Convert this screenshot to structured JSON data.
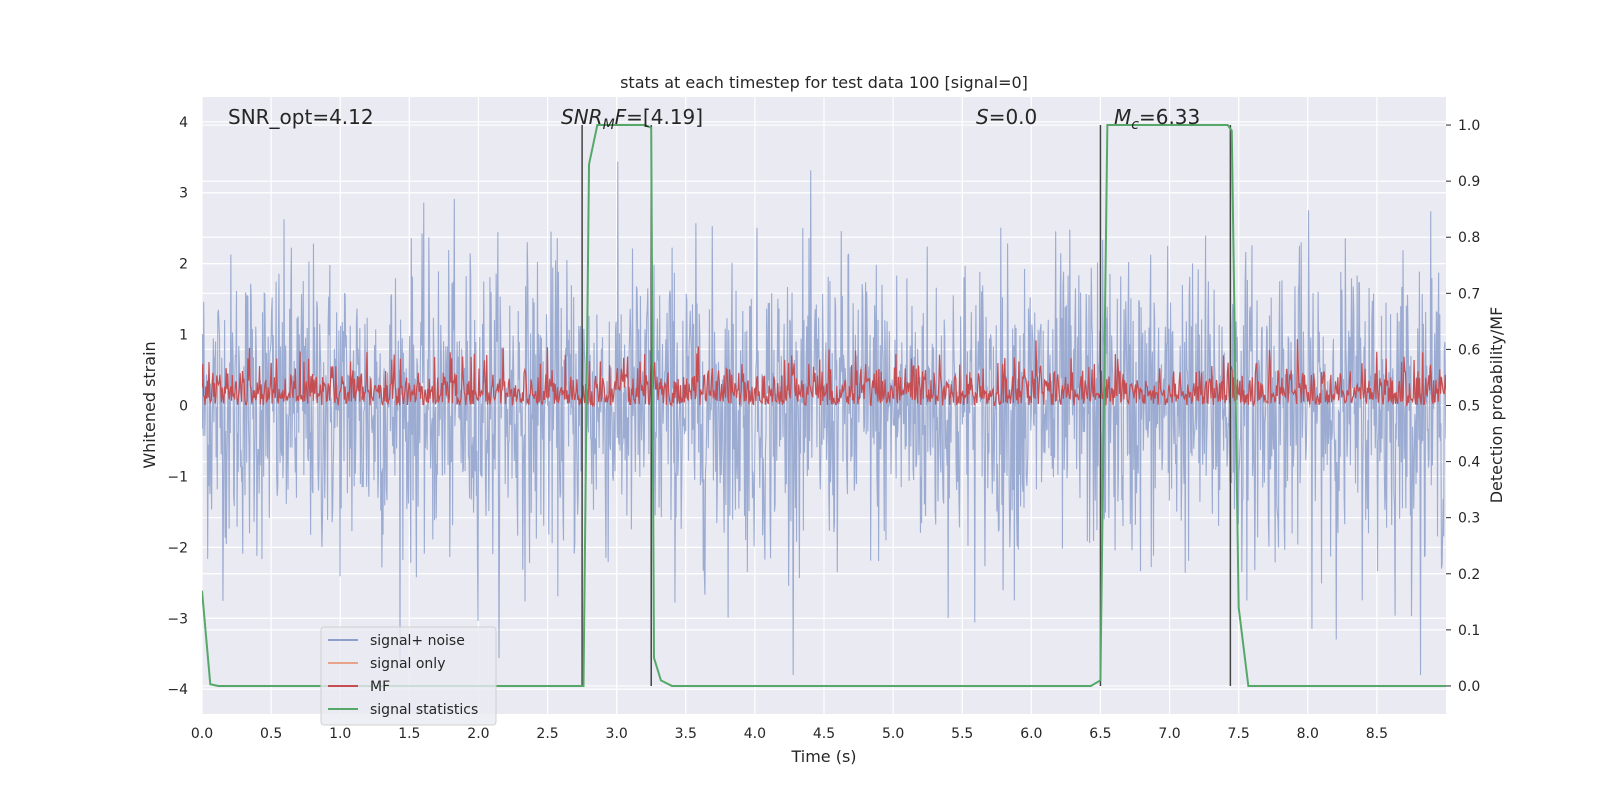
{
  "chart_data": {
    "type": "line",
    "title": "stats at each timestep for test data 100 [signal=0]",
    "xlabel": "Time (s)",
    "ylabel_left": "Whitened strain",
    "ylabel_right": "Detection probability/MF",
    "xlim": [
      0,
      9
    ],
    "ylim_left": [
      -4.35,
      4.35
    ],
    "ylim_right": [
      -0.05,
      1.05
    ],
    "x_ticks": [
      "0.0",
      "0.5",
      "1.0",
      "1.5",
      "2.0",
      "2.5",
      "3.0",
      "3.5",
      "4.0",
      "4.5",
      "5.0",
      "5.5",
      "6.0",
      "6.5",
      "7.0",
      "7.5",
      "8.0",
      "8.5"
    ],
    "y_ticks_left": [
      "−4",
      "−3",
      "−2",
      "−1",
      "0",
      "1",
      "2",
      "3",
      "4"
    ],
    "y_ticks_right": [
      "0.0",
      "0.1",
      "0.2",
      "0.3",
      "0.4",
      "0.5",
      "0.6",
      "0.7",
      "0.8",
      "0.9",
      "1.0"
    ],
    "grid": true,
    "legend_position": "lower left",
    "annotations": {
      "snr_opt": "SNR_opt=4.12",
      "snr_mf": "SNRMF=[4.19]",
      "s_value": "S=0.0",
      "mc_value": "Mc=6.33"
    },
    "series": [
      {
        "name": "signal+ noise",
        "axis": "left",
        "color": "#8da0cb",
        "kind": "noise",
        "envelope": [
          -3.8,
          3.9
        ]
      },
      {
        "name": "signal only",
        "axis": "left",
        "color": "#e8a48a",
        "values": []
      },
      {
        "name": "MF",
        "axis": "right",
        "color": "#c44e52",
        "kind": "noise",
        "band": [
          0.5,
          0.6
        ]
      },
      {
        "name": "signal statistics",
        "axis": "right",
        "color": "#55a868",
        "x": [
          0.0,
          0.06,
          0.12,
          2.74,
          2.76,
          2.8,
          2.86,
          3.2,
          3.25,
          3.27,
          3.32,
          3.4,
          6.43,
          6.5,
          6.55,
          6.6,
          7.42,
          7.45,
          7.5,
          7.57,
          9.0
        ],
        "y": [
          0.17,
          0.003,
          0.0,
          0.0,
          0.0,
          0.93,
          1.0,
          1.0,
          0.995,
          0.05,
          0.01,
          0.0,
          0.0,
          0.01,
          1.0,
          1.0,
          1.0,
          0.99,
          0.14,
          0.0,
          0.0
        ]
      }
    ],
    "vertical_lines": [
      2.75,
      3.25,
      6.5,
      7.44
    ]
  }
}
